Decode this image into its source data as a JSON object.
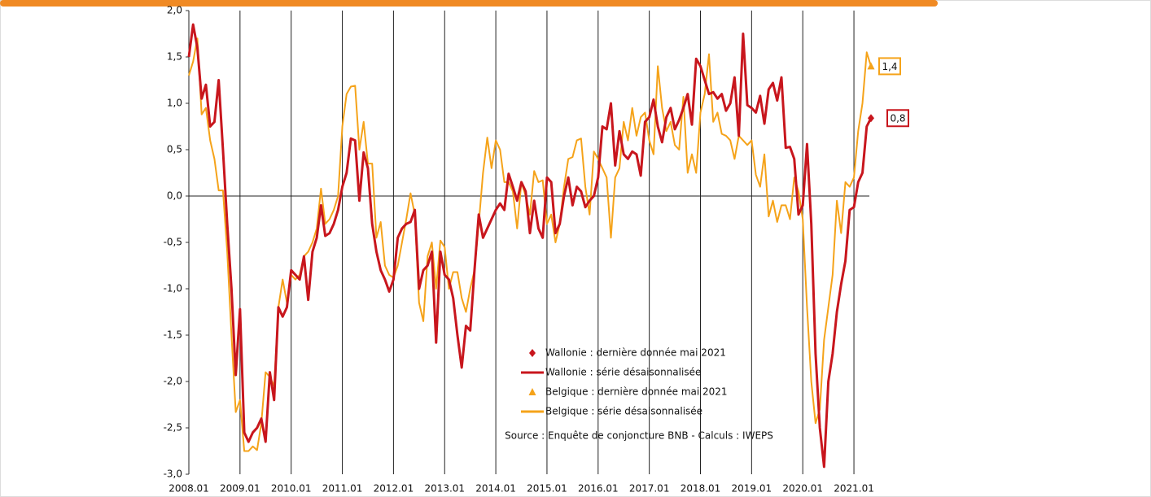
{
  "chart_data": {
    "type": "line",
    "categories": [
      "2008.01",
      null,
      null,
      null,
      null,
      null,
      null,
      null,
      null,
      null,
      null,
      null,
      "2009.01",
      null,
      null,
      null,
      null,
      null,
      null,
      null,
      null,
      null,
      null,
      null,
      "2010.01",
      null,
      null,
      null,
      null,
      null,
      null,
      null,
      null,
      null,
      null,
      null,
      "2011.01",
      null,
      null,
      null,
      null,
      null,
      null,
      null,
      null,
      null,
      null,
      null,
      "2012.01",
      null,
      null,
      null,
      null,
      null,
      null,
      null,
      null,
      null,
      null,
      null,
      "2013.01",
      null,
      null,
      null,
      null,
      null,
      null,
      null,
      null,
      null,
      null,
      null,
      "2014.01",
      null,
      null,
      null,
      null,
      null,
      null,
      null,
      null,
      null,
      null,
      null,
      "2015.01",
      null,
      null,
      null,
      null,
      null,
      null,
      null,
      null,
      null,
      null,
      null,
      "2016.01",
      null,
      null,
      null,
      null,
      null,
      null,
      null,
      null,
      null,
      null,
      null,
      "2017.01",
      null,
      null,
      null,
      null,
      null,
      null,
      null,
      null,
      null,
      null,
      null,
      "2018.01",
      null,
      null,
      null,
      null,
      null,
      null,
      null,
      null,
      null,
      null,
      null,
      "2019.01",
      null,
      null,
      null,
      null,
      null,
      null,
      null,
      null,
      null,
      null,
      null,
      "2020.01",
      null,
      null,
      null,
      null,
      null,
      null,
      null,
      null,
      null,
      null,
      null,
      "2021.01",
      null,
      null,
      null,
      null
    ],
    "series": [
      {
        "name": "Wallonie : dernière donnée mai 2021",
        "color": "#c8161d",
        "marker": "diamond",
        "values": [
          null,
          null,
          null,
          null,
          null,
          null,
          null,
          null,
          null,
          null,
          null,
          null,
          null,
          null,
          null,
          null,
          null,
          null,
          null,
          null,
          null,
          null,
          null,
          null,
          null,
          null,
          null,
          null,
          null,
          null,
          null,
          null,
          null,
          null,
          null,
          null,
          null,
          null,
          null,
          null,
          null,
          null,
          null,
          null,
          null,
          null,
          null,
          null,
          null,
          null,
          null,
          null,
          null,
          null,
          null,
          null,
          null,
          null,
          null,
          null,
          null,
          null,
          null,
          null,
          null,
          null,
          null,
          null,
          null,
          null,
          null,
          null,
          null,
          null,
          null,
          null,
          null,
          null,
          null,
          null,
          null,
          null,
          null,
          null,
          null,
          null,
          null,
          null,
          null,
          null,
          null,
          null,
          null,
          null,
          null,
          null,
          null,
          null,
          null,
          null,
          null,
          null,
          null,
          null,
          null,
          null,
          null,
          null,
          null,
          null,
          null,
          null,
          null,
          null,
          null,
          null,
          null,
          null,
          null,
          null,
          null,
          null,
          null,
          null,
          null,
          null,
          null,
          null,
          null,
          null,
          null,
          null,
          null,
          null,
          null,
          null,
          null,
          null,
          null,
          null,
          null,
          null,
          null,
          null,
          null,
          null,
          null,
          null,
          null,
          null,
          null,
          null,
          null,
          null,
          null,
          null,
          null,
          null,
          null,
          null,
          0.84
        ],
        "value_labels": [
          null,
          null,
          null,
          null,
          null,
          null,
          null,
          null,
          null,
          null,
          null,
          null,
          null,
          null,
          null,
          null,
          null,
          null,
          null,
          null,
          null,
          null,
          null,
          null,
          null,
          null,
          null,
          null,
          null,
          null,
          null,
          null,
          null,
          null,
          null,
          null,
          null,
          null,
          null,
          null,
          null,
          null,
          null,
          null,
          null,
          null,
          null,
          null,
          null,
          null,
          null,
          null,
          null,
          null,
          null,
          null,
          null,
          null,
          null,
          null,
          null,
          null,
          null,
          null,
          null,
          null,
          null,
          null,
          null,
          null,
          null,
          null,
          null,
          null,
          null,
          null,
          null,
          null,
          null,
          null,
          null,
          null,
          null,
          null,
          null,
          null,
          null,
          null,
          null,
          null,
          null,
          null,
          null,
          null,
          null,
          null,
          null,
          null,
          null,
          null,
          null,
          null,
          null,
          null,
          null,
          null,
          null,
          null,
          null,
          null,
          null,
          null,
          null,
          null,
          null,
          null,
          null,
          null,
          null,
          null,
          null,
          null,
          null,
          null,
          null,
          null,
          null,
          null,
          null,
          null,
          null,
          null,
          null,
          null,
          null,
          null,
          null,
          null,
          null,
          null,
          null,
          null,
          null,
          null,
          null,
          null,
          null,
          null,
          null,
          null,
          null,
          null,
          null,
          null,
          null,
          null,
          null,
          null,
          null,
          null,
          "0,8"
        ]
      },
      {
        "name": "Wallonie : série désaisonnalisée",
        "color": "#c8161d",
        "marker": "line",
        "values": [
          1.5,
          1.85,
          1.6,
          1.05,
          1.2,
          0.75,
          0.8,
          1.25,
          0.5,
          -0.3,
          -1.0,
          -1.93,
          -1.22,
          -2.55,
          -2.65,
          -2.55,
          -2.5,
          -2.4,
          -2.65,
          -1.9,
          -2.2,
          -1.2,
          -1.3,
          -1.2,
          -0.8,
          -0.85,
          -0.9,
          -0.65,
          -1.12,
          -0.6,
          -0.45,
          -0.1,
          -0.43,
          -0.4,
          -0.3,
          -0.15,
          0.1,
          0.25,
          0.62,
          0.6,
          -0.05,
          0.47,
          0.3,
          -0.3,
          -0.6,
          -0.8,
          -0.9,
          -1.03,
          -0.9,
          -0.45,
          -0.35,
          -0.3,
          -0.28,
          -0.15,
          -1.0,
          -0.8,
          -0.75,
          -0.6,
          -1.58,
          -0.6,
          -0.85,
          -0.9,
          -1.1,
          -1.5,
          -1.85,
          -1.4,
          -1.45,
          -0.8,
          -0.2,
          -0.45,
          -0.35,
          -0.25,
          -0.15,
          -0.08,
          -0.15,
          0.24,
          0.1,
          -0.05,
          0.15,
          0.05,
          -0.4,
          -0.05,
          -0.35,
          -0.45,
          0.2,
          0.15,
          -0.4,
          -0.3,
          0.0,
          0.2,
          -0.1,
          0.1,
          0.05,
          -0.12,
          -0.05,
          0.0,
          0.2,
          0.75,
          0.72,
          1.0,
          0.33,
          0.7,
          0.45,
          0.4,
          0.48,
          0.45,
          0.22,
          0.8,
          0.85,
          1.04,
          0.75,
          0.58,
          0.85,
          0.95,
          0.72,
          0.82,
          0.95,
          1.1,
          0.77,
          1.48,
          1.4,
          1.25,
          1.1,
          1.12,
          1.05,
          1.1,
          0.92,
          1.0,
          1.28,
          0.65,
          1.75,
          0.98,
          0.95,
          0.9,
          1.08,
          0.78,
          1.15,
          1.22,
          1.03,
          1.28,
          0.52,
          0.53,
          0.4,
          -0.2,
          -0.1,
          0.56,
          -0.3,
          -1.7,
          -2.5,
          -2.92,
          -2.0,
          -1.7,
          -1.25,
          -0.95,
          -0.7,
          -0.15,
          -0.12,
          0.15,
          0.25,
          0.75,
          0.84
        ]
      },
      {
        "name": "Belgique : dernière donnée mai 2021",
        "color": "#f5a31a",
        "marker": "triangle",
        "values": [
          null,
          null,
          null,
          null,
          null,
          null,
          null,
          null,
          null,
          null,
          null,
          null,
          null,
          null,
          null,
          null,
          null,
          null,
          null,
          null,
          null,
          null,
          null,
          null,
          null,
          null,
          null,
          null,
          null,
          null,
          null,
          null,
          null,
          null,
          null,
          null,
          null,
          null,
          null,
          null,
          null,
          null,
          null,
          null,
          null,
          null,
          null,
          null,
          null,
          null,
          null,
          null,
          null,
          null,
          null,
          null,
          null,
          null,
          null,
          null,
          null,
          null,
          null,
          null,
          null,
          null,
          null,
          null,
          null,
          null,
          null,
          null,
          null,
          null,
          null,
          null,
          null,
          null,
          null,
          null,
          null,
          null,
          null,
          null,
          null,
          null,
          null,
          null,
          null,
          null,
          null,
          null,
          null,
          null,
          null,
          null,
          null,
          null,
          null,
          null,
          null,
          null,
          null,
          null,
          null,
          null,
          null,
          null,
          null,
          null,
          null,
          null,
          null,
          null,
          null,
          null,
          null,
          null,
          null,
          null,
          null,
          null,
          null,
          null,
          null,
          null,
          null,
          null,
          null,
          null,
          null,
          null,
          null,
          null,
          null,
          null,
          null,
          null,
          null,
          null,
          null,
          null,
          null,
          null,
          null,
          null,
          null,
          null,
          null,
          null,
          null,
          null,
          null,
          null,
          null,
          null,
          null,
          null,
          null,
          null,
          1.4
        ],
        "value_labels": [
          null,
          null,
          null,
          null,
          null,
          null,
          null,
          null,
          null,
          null,
          null,
          null,
          null,
          null,
          null,
          null,
          null,
          null,
          null,
          null,
          null,
          null,
          null,
          null,
          null,
          null,
          null,
          null,
          null,
          null,
          null,
          null,
          null,
          null,
          null,
          null,
          null,
          null,
          null,
          null,
          null,
          null,
          null,
          null,
          null,
          null,
          null,
          null,
          null,
          null,
          null,
          null,
          null,
          null,
          null,
          null,
          null,
          null,
          null,
          null,
          null,
          null,
          null,
          null,
          null,
          null,
          null,
          null,
          null,
          null,
          null,
          null,
          null,
          null,
          null,
          null,
          null,
          null,
          null,
          null,
          null,
          null,
          null,
          null,
          null,
          null,
          null,
          null,
          null,
          null,
          null,
          null,
          null,
          null,
          null,
          null,
          null,
          null,
          null,
          null,
          null,
          null,
          null,
          null,
          null,
          null,
          null,
          null,
          null,
          null,
          null,
          null,
          null,
          null,
          null,
          null,
          null,
          null,
          null,
          null,
          null,
          null,
          null,
          null,
          null,
          null,
          null,
          null,
          null,
          null,
          null,
          null,
          null,
          null,
          null,
          null,
          null,
          null,
          null,
          null,
          null,
          null,
          null,
          null,
          null,
          null,
          null,
          null,
          null,
          null,
          null,
          null,
          null,
          null,
          null,
          null,
          null,
          null,
          null,
          null,
          "1,4"
        ]
      },
      {
        "name": "Belgique : série désaisonnalisée",
        "color": "#f5a31a",
        "marker": "line",
        "values": [
          1.3,
          1.45,
          1.7,
          0.88,
          0.95,
          0.6,
          0.4,
          0.06,
          0.06,
          -0.6,
          -1.5,
          -2.33,
          -2.2,
          -2.75,
          -2.75,
          -2.7,
          -2.74,
          -2.45,
          -1.9,
          -1.95,
          -2.05,
          -1.2,
          -0.9,
          -1.15,
          -0.85,
          -0.9,
          -0.85,
          -0.65,
          -0.6,
          -0.5,
          -0.35,
          0.08,
          -0.3,
          -0.25,
          -0.15,
          0.0,
          0.75,
          1.1,
          1.18,
          1.19,
          0.5,
          0.8,
          0.35,
          0.35,
          -0.45,
          -0.28,
          -0.75,
          -0.85,
          -0.88,
          -0.75,
          -0.5,
          -0.25,
          0.03,
          -0.2,
          -1.15,
          -1.35,
          -0.65,
          -0.5,
          -1.0,
          -0.48,
          -0.55,
          -1.0,
          -0.82,
          -0.82,
          -1.1,
          -1.25,
          -1.0,
          -0.8,
          -0.3,
          0.25,
          0.63,
          0.3,
          0.6,
          0.5,
          0.15,
          0.15,
          0.05,
          -0.35,
          0.15,
          0.0,
          -0.2,
          0.27,
          0.15,
          0.17,
          -0.3,
          -0.2,
          -0.5,
          -0.3,
          0.1,
          0.4,
          0.42,
          0.6,
          0.62,
          0.1,
          -0.2,
          0.48,
          0.4,
          0.3,
          0.2,
          -0.45,
          0.2,
          0.3,
          0.8,
          0.6,
          0.95,
          0.65,
          0.85,
          0.9,
          0.6,
          0.45,
          1.4,
          0.95,
          0.7,
          0.8,
          0.55,
          0.5,
          1.07,
          0.25,
          0.45,
          0.25,
          0.9,
          1.1,
          1.53,
          0.8,
          0.9,
          0.67,
          0.65,
          0.6,
          0.4,
          0.65,
          0.6,
          0.55,
          0.6,
          0.23,
          0.1,
          0.45,
          -0.22,
          -0.05,
          -0.28,
          -0.1,
          -0.1,
          -0.25,
          0.2,
          0.05,
          -0.25,
          -1.2,
          -2.0,
          -2.45,
          -2.3,
          -1.55,
          -1.2,
          -0.85,
          -0.05,
          -0.4,
          0.15,
          0.1,
          0.2,
          0.7,
          1.0,
          1.55,
          1.4
        ]
      }
    ],
    "ylim": [
      -3.0,
      2.0
    ],
    "yticks": [
      {
        "value": -3.0,
        "label": "-3,0"
      },
      {
        "value": -2.5,
        "label": "-2,5"
      },
      {
        "value": -2.0,
        "label": "-2,0"
      },
      {
        "value": -1.5,
        "label": "-1,5"
      },
      {
        "value": -1.0,
        "label": "-1,0"
      },
      {
        "value": -0.5,
        "label": "-0,5"
      },
      {
        "value": 0.0,
        "label": "0,0"
      },
      {
        "value": 0.5,
        "label": "0,5"
      },
      {
        "value": 1.0,
        "label": "1,0"
      },
      {
        "value": 1.5,
        "label": "1,5"
      },
      {
        "value": 2.0,
        "label": "2,0"
      }
    ],
    "source": "Source : Enquête de conjoncture BNB - Calculs : IWEPS"
  }
}
